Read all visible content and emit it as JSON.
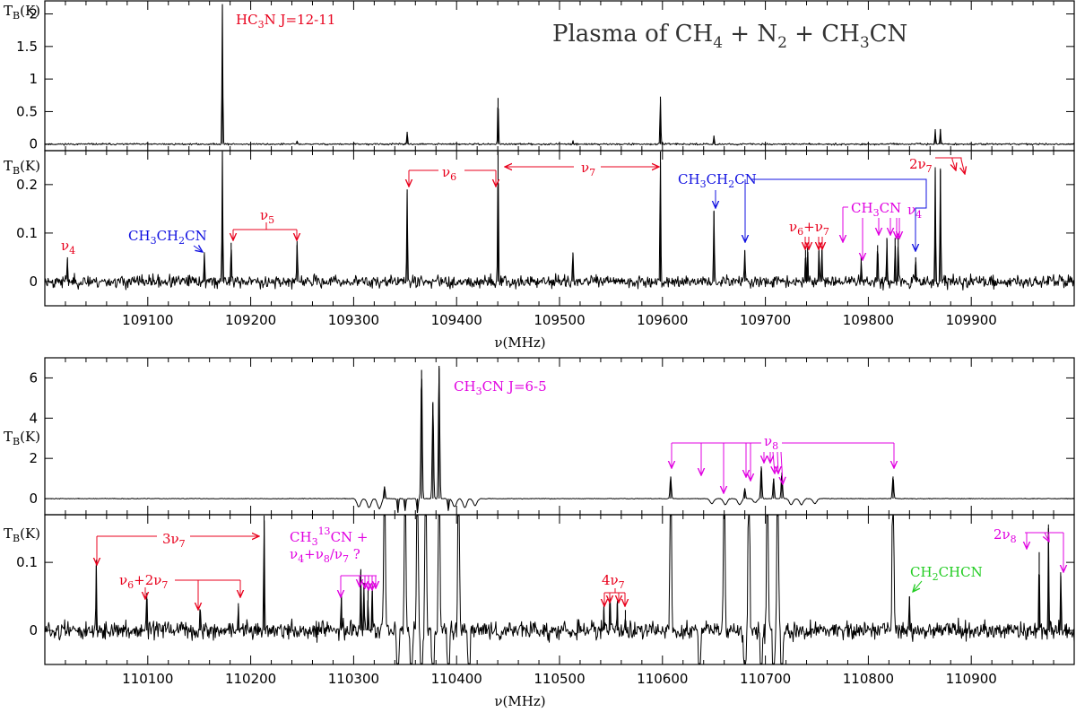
{
  "colors": {
    "red": "#e8001c",
    "blue": "#1010e0",
    "magenta": "#e000e0",
    "green": "#22cc22",
    "black": "#000000"
  },
  "chart_data": [
    {
      "type": "line",
      "id": "top",
      "title": "Plasma of CH4 + N2 + CH3CN",
      "xlabel": "",
      "ylabel": "TB(K)",
      "xlim": [
        109000,
        110000
      ],
      "ylim": [
        -0.1,
        2.2
      ],
      "yticks": [
        0,
        0.5,
        1,
        1.5,
        2
      ],
      "ytick_labels": [
        "0",
        "0.5",
        "1",
        "1.5",
        "2"
      ],
      "series": [
        {
          "x": [
            109172.5,
            109352.0,
            109440.3,
            109598.0,
            109650.0,
            109865.0,
            109870.0,
            109245.0,
            109513.0
          ],
          "values": [
            2.15,
            0.19,
            0.71,
            0.73,
            0.13,
            0.23,
            0.23,
            0.05,
            0.05
          ]
        }
      ],
      "annotations": [
        {
          "text": "HC3N J=12-11",
          "color": "red"
        }
      ]
    },
    {
      "type": "line",
      "id": "upper-zoom",
      "xlabel": "ν(MHz)",
      "ylabel": "TB(K)",
      "xlim": [
        109000,
        110000
      ],
      "ylim": [
        -0.05,
        0.27
      ],
      "xticks": [
        109100,
        109200,
        109300,
        109400,
        109500,
        109600,
        109700,
        109800,
        109900
      ],
      "xtick_labels": [
        "109100",
        "109200",
        "109300",
        "109400",
        "109500",
        "109600",
        "109700",
        "109800",
        "109900"
      ],
      "yticks": [
        0,
        0.1,
        0.2
      ],
      "ytick_labels": [
        "0",
        "0.1",
        "0.2"
      ],
      "series": [
        {
          "x": [
            109022.0,
            109155.0,
            109172.5,
            109181.0,
            109245.0,
            109352.0,
            109440.3,
            109513.0,
            109598.0,
            109650.0,
            109680.0,
            109739.0,
            109741.0,
            109752.0,
            109755.0,
            109793.0,
            109809.0,
            109818.0,
            109826.0,
            109829.0,
            109846.0,
            109865.0,
            109870.0
          ],
          "values": [
            0.05,
            0.055,
            0.27,
            0.08,
            0.075,
            0.19,
            0.27,
            0.06,
            0.27,
            0.145,
            0.065,
            0.065,
            0.07,
            0.07,
            0.065,
            0.05,
            0.075,
            0.09,
            0.09,
            0.09,
            0.05,
            0.23,
            0.23
          ]
        }
      ],
      "annotations": [
        {
          "text": "ν4",
          "color": "red"
        },
        {
          "text": "CH3CH2CN",
          "color": "blue"
        },
        {
          "text": "ν5",
          "color": "red"
        },
        {
          "text": "ν6",
          "color": "red"
        },
        {
          "text": "ν7",
          "color": "red"
        },
        {
          "text": "CH3CH2CN",
          "color": "blue"
        },
        {
          "text": "ν6+ν7",
          "color": "red"
        },
        {
          "text": "CH3CN",
          "color": "magenta"
        },
        {
          "text": "ν4",
          "color": "magenta"
        },
        {
          "text": "2ν7",
          "color": "red"
        }
      ]
    },
    {
      "type": "line",
      "id": "lower",
      "xlabel": "",
      "ylabel": "TB(K)",
      "xlim": [
        110000,
        111000
      ],
      "ylim": [
        -0.8,
        7.0
      ],
      "yticks": [
        0,
        2,
        4,
        6
      ],
      "ytick_labels": [
        "0",
        "2",
        "4",
        "6"
      ],
      "series": [
        {
          "x": [
            110330.0,
            110366.0,
            110377.0,
            110383.0,
            110343.0,
            110350.0,
            110362.0,
            110392.0,
            110608.0,
            110680.0,
            110696.0,
            110708.0,
            110716.0,
            110824.0
          ],
          "values": [
            0.6,
            6.4,
            4.8,
            6.6,
            -0.7,
            -0.6,
            -0.7,
            -0.6,
            1.1,
            0.5,
            1.6,
            1.0,
            1.3,
            1.1
          ]
        }
      ],
      "annotations": [
        {
          "text": "CH3CN J=6-5",
          "color": "magenta"
        },
        {
          "text": "ν8",
          "color": "magenta"
        }
      ]
    },
    {
      "type": "line",
      "id": "lower-zoom",
      "xlabel": "ν(MHz)",
      "ylabel": "TB(K)",
      "xlim": [
        110000,
        111000
      ],
      "ylim": [
        -0.05,
        0.17
      ],
      "xticks": [
        110100,
        110200,
        110300,
        110400,
        110500,
        110600,
        110700,
        110800,
        110900
      ],
      "xtick_labels": [
        "110100",
        "110200",
        "110300",
        "110400",
        "110500",
        "110600",
        "110700",
        "110800",
        "110900"
      ],
      "yticks": [
        0,
        0.1
      ],
      "ytick_labels": [
        "0",
        "0.1"
      ],
      "series": [
        {
          "x": [
            110050.0,
            110099.0,
            110151.0,
            110188.0,
            110213.0,
            110288.0,
            110307.0,
            110310.0,
            110314.0,
            110318.0,
            110543.0,
            110549.0,
            110556.0,
            110564.0,
            110840.0,
            110966.0,
            110975.0,
            110987.0
          ],
          "values": [
            0.095,
            0.055,
            0.03,
            0.04,
            0.17,
            0.05,
            0.09,
            0.07,
            0.06,
            0.065,
            0.03,
            0.045,
            0.04,
            0.03,
            0.05,
            0.115,
            0.15,
            0.08
          ]
        }
      ],
      "annotations": [
        {
          "text": "3ν7",
          "color": "red"
        },
        {
          "text": "ν6+2ν7",
          "color": "red"
        },
        {
          "text": "CH3 13CN +",
          "color": "magenta"
        },
        {
          "text": "ν4+ν8/ν7 ?",
          "color": "magenta"
        },
        {
          "text": "4ν7",
          "color": "red"
        },
        {
          "text": "CH2CHCN",
          "color": "green"
        },
        {
          "text": "2ν8",
          "color": "magenta"
        }
      ]
    }
  ]
}
